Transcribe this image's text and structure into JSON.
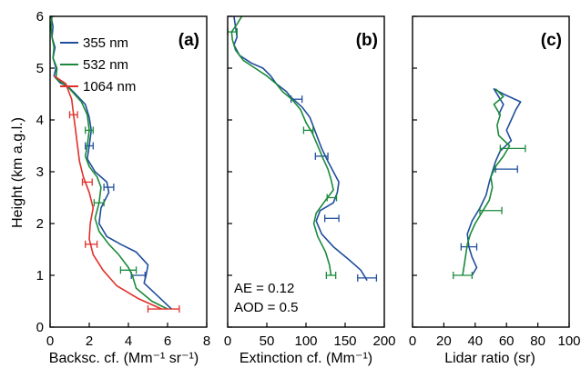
{
  "colors": {
    "355": "#1f4e9c",
    "532": "#1a8a3a",
    "1064": "#e0302a",
    "axis": "#000000"
  },
  "chart_data": [
    {
      "type": "line",
      "panel_label": "(a)",
      "xlabel": "Backsc. cf. (Mm⁻¹ sr⁻¹)",
      "ylabel": "Height (km a.g.l.)",
      "xlim": [
        0,
        8
      ],
      "ylim": [
        0,
        6
      ],
      "xticks": [
        "0",
        "2",
        "4",
        "6",
        "8"
      ],
      "yticks": [
        "0",
        "1",
        "2",
        "3",
        "4",
        "5",
        "6"
      ],
      "legend": {
        "position": "top-right",
        "entries": [
          "355 nm",
          "532 nm",
          "1064 nm"
        ]
      },
      "series": [
        {
          "name": "355 nm",
          "color": "#1f4e9c",
          "points": [
            [
              6.2,
              0.35
            ],
            [
              5.5,
              0.6
            ],
            [
              4.8,
              0.85
            ],
            [
              4.9,
              1.0
            ],
            [
              5.0,
              1.2
            ],
            [
              4.4,
              1.45
            ],
            [
              3.6,
              1.6
            ],
            [
              2.9,
              1.75
            ],
            [
              2.5,
              2.0
            ],
            [
              2.6,
              2.3
            ],
            [
              3.0,
              2.6
            ],
            [
              2.9,
              2.8
            ],
            [
              2.3,
              3.0
            ],
            [
              1.9,
              3.25
            ],
            [
              2.0,
              3.5
            ],
            [
              2.1,
              3.8
            ],
            [
              2.0,
              4.05
            ],
            [
              1.8,
              4.3
            ],
            [
              1.3,
              4.5
            ],
            [
              0.9,
              4.65
            ],
            [
              0.5,
              4.72
            ],
            [
              0.2,
              4.85
            ],
            [
              0.3,
              5.0
            ],
            [
              0.15,
              5.2
            ],
            [
              0.25,
              5.4
            ],
            [
              0.1,
              5.6
            ],
            [
              0.15,
              5.8
            ],
            [
              0.05,
              6.0
            ]
          ],
          "errorbars": [
            {
              "y": 1.0,
              "x": 4.5,
              "err": 0.35
            },
            {
              "y": 2.7,
              "x": 3.0,
              "err": 0.25
            },
            {
              "y": 3.5,
              "x": 2.0,
              "err": 0.2
            }
          ]
        },
        {
          "name": "532 nm",
          "color": "#1a8a3a",
          "points": [
            [
              6.0,
              0.35
            ],
            [
              5.2,
              0.5
            ],
            [
              4.4,
              0.75
            ],
            [
              4.2,
              1.0
            ],
            [
              4.0,
              1.15
            ],
            [
              3.5,
              1.4
            ],
            [
              3.0,
              1.6
            ],
            [
              2.5,
              1.85
            ],
            [
              2.3,
              2.1
            ],
            [
              2.5,
              2.4
            ],
            [
              2.6,
              2.7
            ],
            [
              2.4,
              2.9
            ],
            [
              2.0,
              3.1
            ],
            [
              1.8,
              3.3
            ],
            [
              1.9,
              3.5
            ],
            [
              2.0,
              3.8
            ],
            [
              1.9,
              4.1
            ],
            [
              1.6,
              4.35
            ],
            [
              1.0,
              4.6
            ],
            [
              0.6,
              4.72
            ],
            [
              0.3,
              4.8
            ],
            [
              0.35,
              5.0
            ],
            [
              0.15,
              5.2
            ],
            [
              0.2,
              5.4
            ],
            [
              0.1,
              5.6
            ],
            [
              0.05,
              5.8
            ],
            [
              0.1,
              6.0
            ]
          ],
          "errorbars": [
            {
              "y": 1.1,
              "x": 4.0,
              "err": 0.4
            },
            {
              "y": 2.4,
              "x": 2.5,
              "err": 0.25
            },
            {
              "y": 3.8,
              "x": 2.0,
              "err": 0.2
            }
          ]
        },
        {
          "name": "1064 nm",
          "color": "#e0302a",
          "points": [
            [
              5.7,
              0.35
            ],
            [
              4.5,
              0.55
            ],
            [
              3.4,
              0.8
            ],
            [
              2.7,
              1.1
            ],
            [
              2.2,
              1.4
            ],
            [
              2.0,
              1.7
            ],
            [
              2.05,
              2.0
            ],
            [
              2.2,
              2.3
            ],
            [
              2.0,
              2.6
            ],
            [
              1.7,
              2.9
            ],
            [
              1.5,
              3.2
            ],
            [
              1.4,
              3.5
            ],
            [
              1.3,
              3.8
            ],
            [
              1.2,
              4.1
            ],
            [
              1.1,
              4.4
            ],
            [
              0.8,
              4.7
            ],
            [
              0.2,
              4.85
            ]
          ],
          "errorbars": [
            {
              "y": 0.35,
              "x": 5.8,
              "err": 0.8
            },
            {
              "y": 1.6,
              "x": 2.1,
              "err": 0.3
            },
            {
              "y": 2.8,
              "x": 1.9,
              "err": 0.25
            },
            {
              "y": 4.1,
              "x": 1.2,
              "err": 0.2
            }
          ]
        }
      ]
    },
    {
      "type": "line",
      "panel_label": "(b)",
      "xlabel": "Extinction cf. (Mm⁻¹)",
      "xlim": [
        0,
        200
      ],
      "ylim": [
        0,
        6
      ],
      "xticks": [
        "0",
        "50",
        "100",
        "150",
        "200"
      ],
      "annotations": [
        "AE = 0.12",
        "AOD = 0.5"
      ],
      "series": [
        {
          "name": "355 nm",
          "color": "#1f4e9c",
          "points": [
            [
              178,
              0.9
            ],
            [
              170,
              1.1
            ],
            [
              155,
              1.3
            ],
            [
              135,
              1.55
            ],
            [
              120,
              1.8
            ],
            [
              113,
              2.05
            ],
            [
              118,
              2.25
            ],
            [
              135,
              2.4
            ],
            [
              140,
              2.6
            ],
            [
              142,
              2.8
            ],
            [
              135,
              3.0
            ],
            [
              128,
              3.2
            ],
            [
              120,
              3.45
            ],
            [
              115,
              3.65
            ],
            [
              110,
              3.85
            ],
            [
              105,
              4.05
            ],
            [
              95,
              4.25
            ],
            [
              80,
              4.45
            ],
            [
              75,
              4.55
            ],
            [
              62,
              4.7
            ],
            [
              55,
              4.85
            ],
            [
              45,
              5.0
            ],
            [
              30,
              5.1
            ],
            [
              15,
              5.25
            ],
            [
              8,
              5.45
            ],
            [
              12,
              5.6
            ],
            [
              10,
              5.8
            ],
            [
              8,
              6.0
            ]
          ],
          "errorbars": [
            {
              "y": 0.95,
              "x": 178,
              "err": 12
            },
            {
              "y": 2.1,
              "x": 133,
              "err": 9
            },
            {
              "y": 3.3,
              "x": 120,
              "err": 8
            },
            {
              "y": 4.4,
              "x": 88,
              "err": 7
            }
          ]
        },
        {
          "name": "532 nm",
          "color": "#1a8a3a",
          "points": [
            [
              132,
              1.0
            ],
            [
              130,
              1.2
            ],
            [
              125,
              1.45
            ],
            [
              115,
              1.75
            ],
            [
              110,
              2.0
            ],
            [
              113,
              2.2
            ],
            [
              125,
              2.45
            ],
            [
              135,
              2.65
            ],
            [
              132,
              2.85
            ],
            [
              128,
              3.05
            ],
            [
              122,
              3.25
            ],
            [
              115,
              3.5
            ],
            [
              108,
              3.75
            ],
            [
              100,
              3.95
            ],
            [
              93,
              4.2
            ],
            [
              82,
              4.4
            ],
            [
              70,
              4.55
            ],
            [
              62,
              4.7
            ],
            [
              50,
              4.85
            ],
            [
              35,
              5.0
            ],
            [
              20,
              5.15
            ],
            [
              10,
              5.35
            ],
            [
              6,
              5.55
            ],
            [
              5,
              5.7
            ],
            [
              12,
              5.85
            ],
            [
              18,
              6.0
            ]
          ],
          "errorbars": [
            {
              "y": 1.0,
              "x": 132,
              "err": 6
            },
            {
              "y": 2.5,
              "x": 133,
              "err": 6
            },
            {
              "y": 3.8,
              "x": 103,
              "err": 6
            },
            {
              "y": 5.7,
              "x": 6,
              "err": 6
            }
          ]
        }
      ]
    },
    {
      "type": "line",
      "panel_label": "(c)",
      "xlabel": "Lidar ratio (sr)",
      "xlim": [
        0,
        100
      ],
      "ylim": [
        0,
        6
      ],
      "xticks": [
        "0",
        "20",
        "40",
        "60",
        "80",
        "100"
      ],
      "series": [
        {
          "name": "355 nm",
          "color": "#1f4e9c",
          "points": [
            [
              38,
              1.0
            ],
            [
              41,
              1.15
            ],
            [
              38,
              1.35
            ],
            [
              36,
              1.55
            ],
            [
              35,
              1.8
            ],
            [
              38,
              2.05
            ],
            [
              43,
              2.3
            ],
            [
              47,
              2.55
            ],
            [
              49,
              2.8
            ],
            [
              51,
              3.0
            ],
            [
              53,
              3.2
            ],
            [
              56,
              3.4
            ],
            [
              63,
              3.6
            ],
            [
              60,
              3.8
            ],
            [
              63,
              4.0
            ],
            [
              66,
              4.2
            ],
            [
              69,
              4.35
            ],
            [
              58,
              4.5
            ],
            [
              52,
              4.6
            ],
            [
              58,
              4.3
            ],
            [
              55,
              4.1
            ]
          ],
          "errorbars": [
            {
              "y": 1.55,
              "x": 36,
              "err": 5
            },
            {
              "y": 3.05,
              "x": 60,
              "err": 7
            }
          ]
        },
        {
          "name": "532 nm",
          "color": "#1a8a3a",
          "points": [
            [
              32,
              1.0
            ],
            [
              33,
              1.2
            ],
            [
              34,
              1.4
            ],
            [
              35,
              1.6
            ],
            [
              37,
              1.8
            ],
            [
              40,
              2.0
            ],
            [
              44,
              2.2
            ],
            [
              49,
              2.45
            ],
            [
              51,
              2.7
            ],
            [
              50,
              2.9
            ],
            [
              53,
              3.1
            ],
            [
              58,
              3.3
            ],
            [
              62,
              3.5
            ],
            [
              55,
              3.7
            ],
            [
              54,
              3.9
            ],
            [
              56,
              4.1
            ],
            [
              52,
              4.3
            ],
            [
              58,
              4.45
            ],
            [
              53,
              4.6
            ]
          ],
          "errorbars": [
            {
              "y": 1.0,
              "x": 32,
              "err": 6
            },
            {
              "y": 2.25,
              "x": 50,
              "err": 7
            },
            {
              "y": 3.45,
              "x": 64,
              "err": 8
            }
          ]
        }
      ]
    }
  ]
}
